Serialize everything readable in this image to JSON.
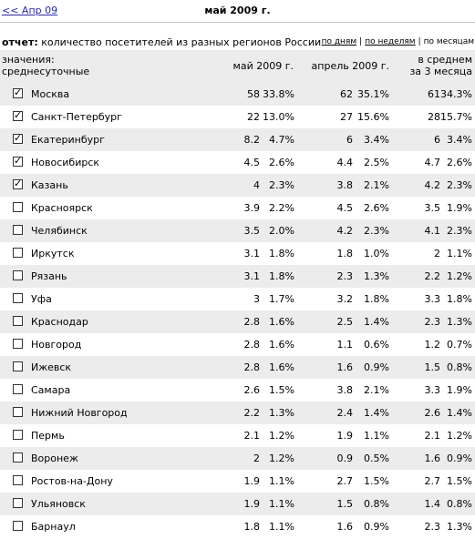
{
  "nav": {
    "prev_label": "<< Апр 09",
    "title": "май 2009 г."
  },
  "report": {
    "prefix": "отчет:",
    "text": "количество посетителей из разных регионов России"
  },
  "periods": {
    "by_day": "по дням",
    "by_week": "по неделям",
    "by_month": "по месяцам",
    "separator": "|"
  },
  "table": {
    "header": {
      "label_line1": "значения:",
      "label_line2": "среднесуточные",
      "col1": "май 2009 г.",
      "col2": "апрель 2009 г.",
      "col3_line1": "в среднем",
      "col3_line2": "за 3 месяца"
    },
    "rows": [
      {
        "checked": true,
        "name": "Москва",
        "m1": "58",
        "p1": "33.8%",
        "m2": "62",
        "p2": "35.1%",
        "m3": "61",
        "p3": "34.3%"
      },
      {
        "checked": true,
        "name": "Санкт-Петербург",
        "m1": "22",
        "p1": "13.0%",
        "m2": "27",
        "p2": "15.6%",
        "m3": "28",
        "p3": "15.7%"
      },
      {
        "checked": true,
        "name": "Екатеринбург",
        "m1": "8.2",
        "p1": "4.7%",
        "m2": "6",
        "p2": "3.4%",
        "m3": "6",
        "p3": "3.4%"
      },
      {
        "checked": true,
        "name": "Новосибирск",
        "m1": "4.5",
        "p1": "2.6%",
        "m2": "4.4",
        "p2": "2.5%",
        "m3": "4.7",
        "p3": "2.6%"
      },
      {
        "checked": true,
        "name": "Казань",
        "m1": "4",
        "p1": "2.3%",
        "m2": "3.8",
        "p2": "2.1%",
        "m3": "4.2",
        "p3": "2.3%"
      },
      {
        "checked": false,
        "name": "Красноярск",
        "m1": "3.9",
        "p1": "2.2%",
        "m2": "4.5",
        "p2": "2.6%",
        "m3": "3.5",
        "p3": "1.9%"
      },
      {
        "checked": false,
        "name": "Челябинск",
        "m1": "3.5",
        "p1": "2.0%",
        "m2": "4.2",
        "p2": "2.3%",
        "m3": "4.1",
        "p3": "2.3%"
      },
      {
        "checked": false,
        "name": "Иркутск",
        "m1": "3.1",
        "p1": "1.8%",
        "m2": "1.8",
        "p2": "1.0%",
        "m3": "2",
        "p3": "1.1%"
      },
      {
        "checked": false,
        "name": "Рязань",
        "m1": "3.1",
        "p1": "1.8%",
        "m2": "2.3",
        "p2": "1.3%",
        "m3": "2.2",
        "p3": "1.2%"
      },
      {
        "checked": false,
        "name": "Уфа",
        "m1": "3",
        "p1": "1.7%",
        "m2": "3.2",
        "p2": "1.8%",
        "m3": "3.3",
        "p3": "1.8%"
      },
      {
        "checked": false,
        "name": "Краснодар",
        "m1": "2.8",
        "p1": "1.6%",
        "m2": "2.5",
        "p2": "1.4%",
        "m3": "2.3",
        "p3": "1.3%"
      },
      {
        "checked": false,
        "name": "Новгород",
        "m1": "2.8",
        "p1": "1.6%",
        "m2": "1.1",
        "p2": "0.6%",
        "m3": "1.2",
        "p3": "0.7%"
      },
      {
        "checked": false,
        "name": "Ижевск",
        "m1": "2.8",
        "p1": "1.6%",
        "m2": "1.6",
        "p2": "0.9%",
        "m3": "1.5",
        "p3": "0.8%"
      },
      {
        "checked": false,
        "name": "Самара",
        "m1": "2.6",
        "p1": "1.5%",
        "m2": "3.8",
        "p2": "2.1%",
        "m3": "3.3",
        "p3": "1.9%"
      },
      {
        "checked": false,
        "name": "Нижний Новгород",
        "m1": "2.2",
        "p1": "1.3%",
        "m2": "2.4",
        "p2": "1.4%",
        "m3": "2.6",
        "p3": "1.4%"
      },
      {
        "checked": false,
        "name": "Пермь",
        "m1": "2.1",
        "p1": "1.2%",
        "m2": "1.9",
        "p2": "1.1%",
        "m3": "2.1",
        "p3": "1.2%"
      },
      {
        "checked": false,
        "name": "Воронеж",
        "m1": "2",
        "p1": "1.2%",
        "m2": "0.9",
        "p2": "0.5%",
        "m3": "1.6",
        "p3": "0.9%"
      },
      {
        "checked": false,
        "name": "Ростов-на-Дону",
        "m1": "1.9",
        "p1": "1.1%",
        "m2": "2.7",
        "p2": "1.5%",
        "m3": "2.7",
        "p3": "1.5%"
      },
      {
        "checked": false,
        "name": "Ульяновск",
        "m1": "1.9",
        "p1": "1.1%",
        "m2": "1.5",
        "p2": "0.8%",
        "m3": "1.4",
        "p3": "0.8%"
      },
      {
        "checked": false,
        "name": "Барнаул",
        "m1": "1.8",
        "p1": "1.1%",
        "m2": "1.6",
        "p2": "0.9%",
        "m3": "2.3",
        "p3": "1.3%"
      }
    ]
  }
}
